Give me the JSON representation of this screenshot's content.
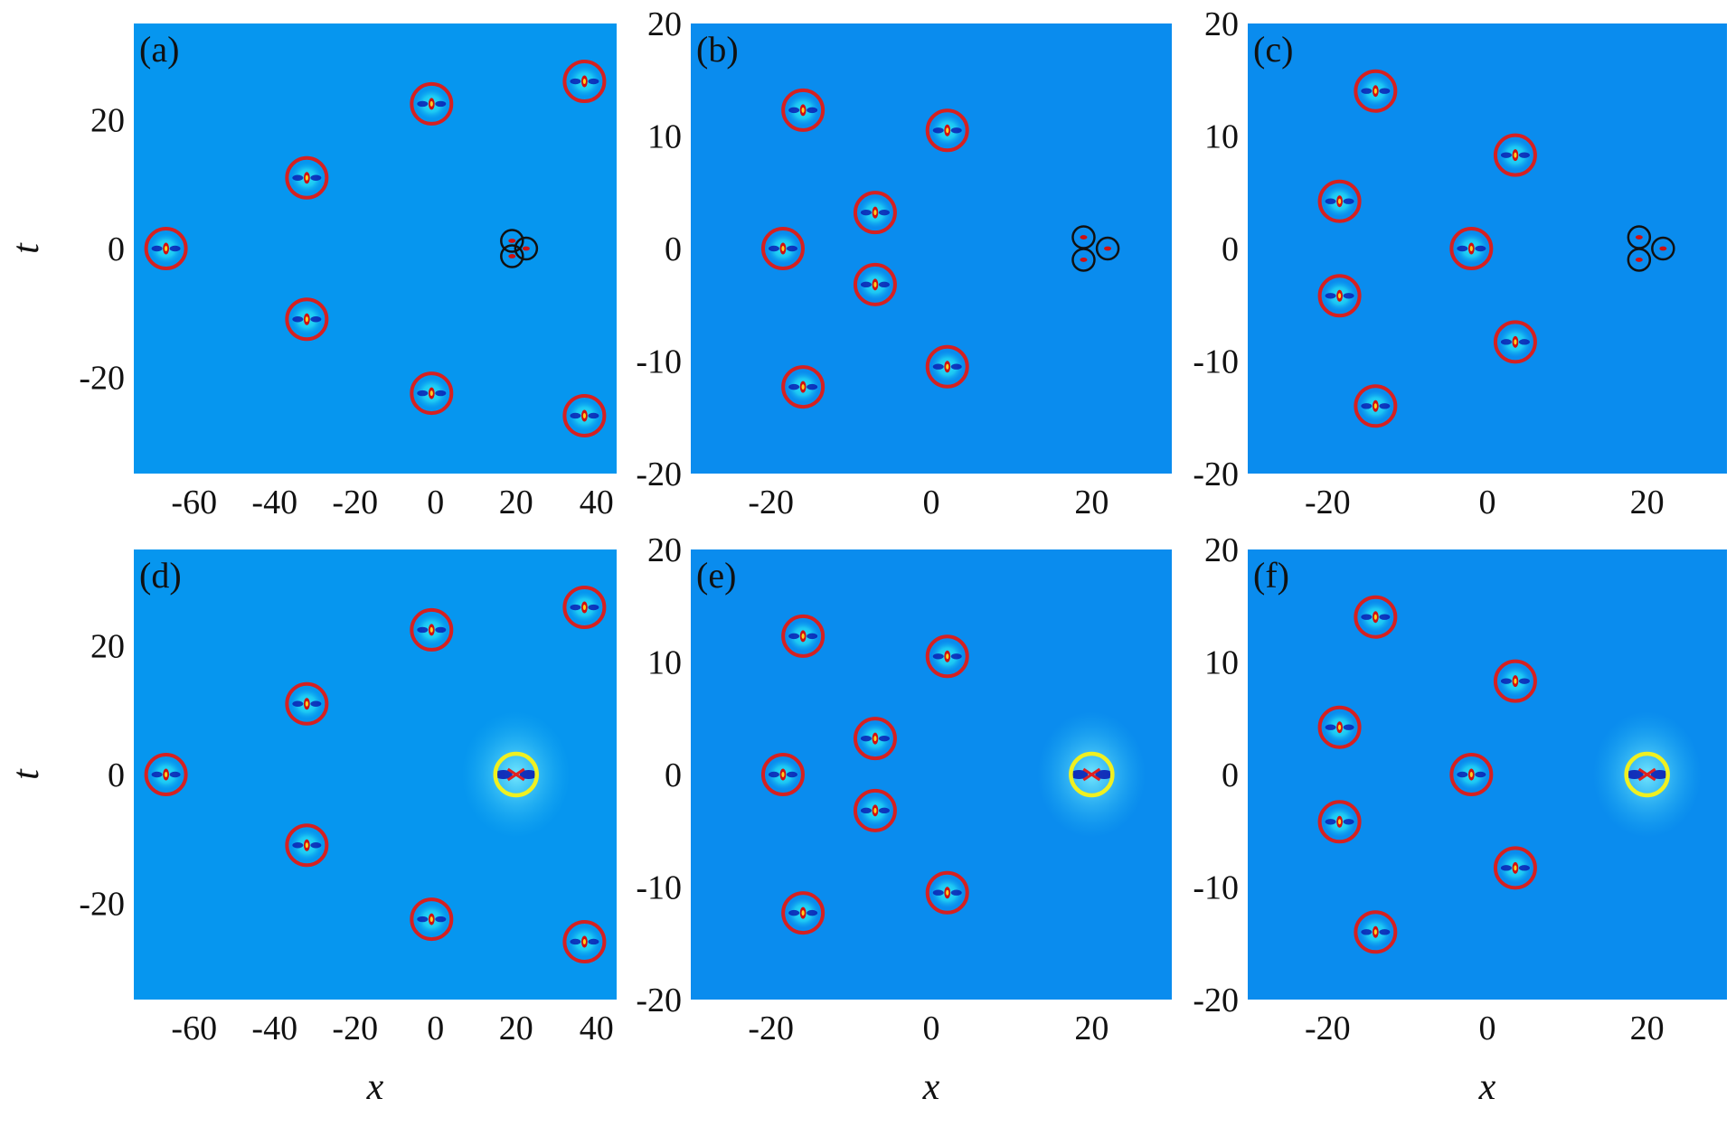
{
  "colors": {
    "background_a": "#0696ef",
    "background_b": "#0a8cee",
    "peak_halo": "#27e6f8",
    "peak_dark": "#0b1fb3",
    "peak_core": "#d01010",
    "peak_hot": "#ffd020",
    "circle_red": "#d62020",
    "circle_black": "#111111",
    "circle_yellow": "#f0f020",
    "text": "#111111"
  },
  "chart_data": [
    {
      "type": "heatmap",
      "panel_label": "(a)",
      "xlabel": "",
      "ylabel": "t",
      "xlim": [
        -75,
        45
      ],
      "ylim": [
        -35,
        35
      ],
      "xticks": [
        -60,
        -40,
        -20,
        0,
        20,
        40
      ],
      "yticks": [
        -20,
        0,
        20
      ],
      "peaks": [
        {
          "x": -67,
          "y": 0
        },
        {
          "x": -32,
          "y": 11
        },
        {
          "x": -32,
          "y": -11
        },
        {
          "x": -1,
          "y": 22.5
        },
        {
          "x": -1,
          "y": -22.5
        },
        {
          "x": 37,
          "y": 26
        },
        {
          "x": 37,
          "y": -26
        }
      ],
      "red_circles": [
        {
          "x": -67,
          "y": 0
        },
        {
          "x": -32,
          "y": 11
        },
        {
          "x": -32,
          "y": -11
        },
        {
          "x": -1,
          "y": 22.5
        },
        {
          "x": -1,
          "y": -22.5
        },
        {
          "x": 37,
          "y": 26
        },
        {
          "x": 37,
          "y": -26
        }
      ],
      "black_circles": [
        {
          "x": 19,
          "y": 1.2
        },
        {
          "x": 19,
          "y": -1.2
        },
        {
          "x": 22.5,
          "y": 0
        }
      ],
      "yellow_circles": []
    },
    {
      "type": "heatmap",
      "panel_label": "(b)",
      "xlabel": "",
      "ylabel": "",
      "xlim": [
        -30,
        30
      ],
      "ylim": [
        -20,
        20
      ],
      "xticks": [
        -20,
        0,
        20
      ],
      "yticks": [
        -20,
        -10,
        0,
        10,
        20
      ],
      "peaks": [
        {
          "x": -18.5,
          "y": 0
        },
        {
          "x": -16,
          "y": 12.3
        },
        {
          "x": -16,
          "y": -12.3
        },
        {
          "x": -7,
          "y": 3.2
        },
        {
          "x": -7,
          "y": -3.2
        },
        {
          "x": 2,
          "y": 10.5
        },
        {
          "x": 2,
          "y": -10.5
        }
      ],
      "red_circles": [
        {
          "x": -18.5,
          "y": 0
        },
        {
          "x": -16,
          "y": 12.3
        },
        {
          "x": -16,
          "y": -12.3
        },
        {
          "x": -7,
          "y": 3.2
        },
        {
          "x": -7,
          "y": -3.2
        },
        {
          "x": 2,
          "y": 10.5
        },
        {
          "x": 2,
          "y": -10.5
        }
      ],
      "black_circles": [
        {
          "x": 19,
          "y": 1
        },
        {
          "x": 19,
          "y": -1
        },
        {
          "x": 22,
          "y": 0
        }
      ],
      "yellow_circles": []
    },
    {
      "type": "heatmap",
      "panel_label": "(c)",
      "xlabel": "",
      "ylabel": "",
      "xlim": [
        -30,
        30
      ],
      "ylim": [
        -20,
        20
      ],
      "xticks": [
        -20,
        0,
        20
      ],
      "yticks": [
        -20,
        -10,
        0,
        10,
        20
      ],
      "peaks": [
        {
          "x": -14,
          "y": 14
        },
        {
          "x": -18.5,
          "y": 4.2
        },
        {
          "x": -18.5,
          "y": -4.2
        },
        {
          "x": -14,
          "y": -14
        },
        {
          "x": -2,
          "y": 0
        },
        {
          "x": 3.5,
          "y": 8.3
        },
        {
          "x": 3.5,
          "y": -8.3
        }
      ],
      "red_circles": [
        {
          "x": -14,
          "y": 14
        },
        {
          "x": -18.5,
          "y": 4.2
        },
        {
          "x": -18.5,
          "y": -4.2
        },
        {
          "x": -14,
          "y": -14
        },
        {
          "x": -2,
          "y": 0
        },
        {
          "x": 3.5,
          "y": 8.3
        },
        {
          "x": 3.5,
          "y": -8.3
        }
      ],
      "black_circles": [
        {
          "x": 19,
          "y": 1
        },
        {
          "x": 19,
          "y": -1
        },
        {
          "x": 22,
          "y": 0
        }
      ],
      "yellow_circles": []
    },
    {
      "type": "heatmap",
      "panel_label": "(d)",
      "xlabel": "x",
      "ylabel": "t",
      "xlim": [
        -75,
        45
      ],
      "ylim": [
        -35,
        35
      ],
      "xticks": [
        -60,
        -40,
        -20,
        0,
        20,
        40
      ],
      "yticks": [
        -20,
        0,
        20
      ],
      "peaks": [
        {
          "x": -67,
          "y": 0
        },
        {
          "x": -32,
          "y": 11
        },
        {
          "x": -32,
          "y": -11
        },
        {
          "x": -1,
          "y": 22.5
        },
        {
          "x": -1,
          "y": -22.5
        },
        {
          "x": 37,
          "y": 26
        },
        {
          "x": 37,
          "y": -26
        }
      ],
      "red_circles": [
        {
          "x": -67,
          "y": 0
        },
        {
          "x": -32,
          "y": 11
        },
        {
          "x": -32,
          "y": -11
        },
        {
          "x": -1,
          "y": 22.5
        },
        {
          "x": -1,
          "y": -22.5
        },
        {
          "x": 37,
          "y": 26
        },
        {
          "x": 37,
          "y": -26
        }
      ],
      "black_circles": [],
      "yellow_circles": [
        {
          "x": 20,
          "y": 0
        }
      ]
    },
    {
      "type": "heatmap",
      "panel_label": "(e)",
      "xlabel": "x",
      "ylabel": "",
      "xlim": [
        -30,
        30
      ],
      "ylim": [
        -20,
        20
      ],
      "xticks": [
        -20,
        0,
        20
      ],
      "yticks": [
        -20,
        -10,
        0,
        10,
        20
      ],
      "peaks": [
        {
          "x": -18.5,
          "y": 0
        },
        {
          "x": -16,
          "y": 12.3
        },
        {
          "x": -16,
          "y": -12.3
        },
        {
          "x": -7,
          "y": 3.2
        },
        {
          "x": -7,
          "y": -3.2
        },
        {
          "x": 2,
          "y": 10.5
        },
        {
          "x": 2,
          "y": -10.5
        }
      ],
      "red_circles": [
        {
          "x": -18.5,
          "y": 0
        },
        {
          "x": -16,
          "y": 12.3
        },
        {
          "x": -16,
          "y": -12.3
        },
        {
          "x": -7,
          "y": 3.2
        },
        {
          "x": -7,
          "y": -3.2
        },
        {
          "x": 2,
          "y": 10.5
        },
        {
          "x": 2,
          "y": -10.5
        }
      ],
      "black_circles": [],
      "yellow_circles": [
        {
          "x": 20,
          "y": 0
        }
      ]
    },
    {
      "type": "heatmap",
      "panel_label": "(f)",
      "xlabel": "x",
      "ylabel": "",
      "xlim": [
        -30,
        30
      ],
      "ylim": [
        -20,
        20
      ],
      "xticks": [
        -20,
        0,
        20
      ],
      "yticks": [
        -20,
        -10,
        0,
        10,
        20
      ],
      "peaks": [
        {
          "x": -14,
          "y": 14
        },
        {
          "x": -18.5,
          "y": 4.2
        },
        {
          "x": -18.5,
          "y": -4.2
        },
        {
          "x": -14,
          "y": -14
        },
        {
          "x": -2,
          "y": 0
        },
        {
          "x": 3.5,
          "y": 8.3
        },
        {
          "x": 3.5,
          "y": -8.3
        }
      ],
      "red_circles": [
        {
          "x": -14,
          "y": 14
        },
        {
          "x": -18.5,
          "y": 4.2
        },
        {
          "x": -18.5,
          "y": -4.2
        },
        {
          "x": -14,
          "y": -14
        },
        {
          "x": -2,
          "y": 0
        },
        {
          "x": 3.5,
          "y": 8.3
        },
        {
          "x": 3.5,
          "y": -8.3
        }
      ],
      "black_circles": [],
      "yellow_circles": [
        {
          "x": 20,
          "y": 0
        }
      ]
    }
  ]
}
